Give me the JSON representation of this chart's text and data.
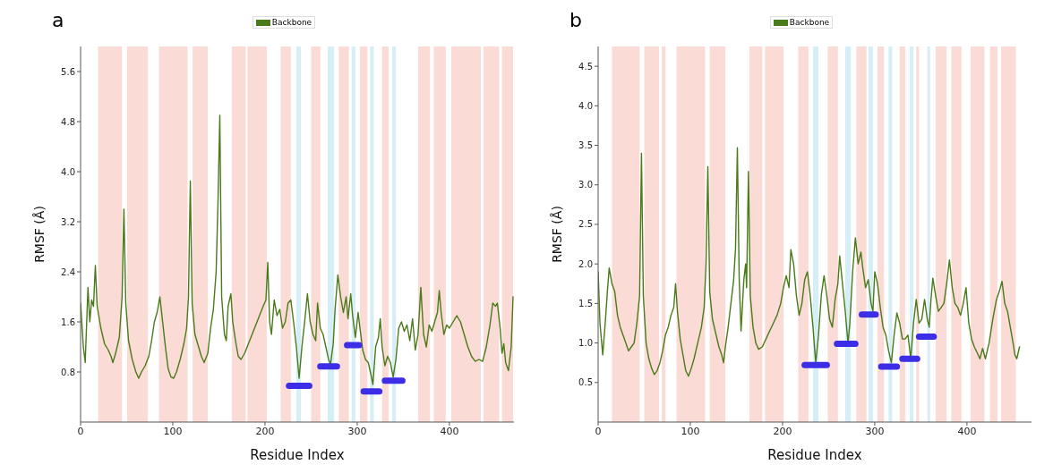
{
  "chart_data": [
    {
      "type": "line",
      "title": "a",
      "xlabel": "Residue Index",
      "ylabel": "RMSF (Å)",
      "legend": "top",
      "xlim": [
        0,
        470
      ],
      "xticks": [
        0,
        100,
        200,
        300,
        400
      ],
      "ylim": [
        0,
        6.0
      ],
      "yticks": [
        0.8,
        1.6,
        2.4,
        3.2,
        {
          "value": 4,
          "label": "4.0"
        },
        4.8,
        5.6
      ],
      "series": [
        {
          "name": "Backbone",
          "color": "#4a7a1a",
          "x": [
            0,
            3,
            5,
            8,
            10,
            12,
            14,
            16,
            18,
            22,
            26,
            30,
            33,
            35,
            38,
            42,
            45,
            47,
            49,
            52,
            56,
            60,
            63,
            66,
            70,
            74,
            77,
            80,
            83,
            86,
            89,
            92,
            95,
            98,
            101,
            104,
            108,
            112,
            115,
            117,
            119,
            121,
            124,
            128,
            131,
            134,
            138,
            141,
            144,
            147,
            149,
            151,
            153,
            156,
            158,
            160,
            163,
            165,
            168,
            171,
            174,
            178,
            182,
            186,
            190,
            194,
            198,
            201,
            203,
            205,
            207,
            210,
            213,
            216,
            219,
            222,
            225,
            228,
            231,
            234,
            237,
            240,
            243,
            246,
            249,
            252,
            255,
            257,
            260,
            263,
            266,
            269,
            271,
            274,
            276,
            279,
            282,
            285,
            288,
            290,
            293,
            295,
            298,
            301,
            303,
            306,
            309,
            312,
            315,
            317,
            320,
            323,
            325,
            327,
            330,
            333,
            336,
            339,
            342,
            345,
            348,
            351,
            354,
            357,
            360,
            363,
            366,
            369,
            372,
            375,
            378,
            381,
            384,
            387,
            389,
            391,
            394,
            397,
            400,
            404,
            408,
            412,
            416,
            420,
            424,
            428,
            432,
            436,
            440,
            444,
            447,
            450,
            452,
            455,
            457,
            459,
            461,
            464,
            467,
            469
          ],
          "values": [
            1.9,
            1.2,
            0.95,
            2.15,
            1.6,
            1.95,
            1.85,
            2.5,
            1.85,
            1.5,
            1.25,
            1.15,
            1.05,
            0.95,
            1.1,
            1.35,
            2.0,
            3.4,
            1.9,
            1.3,
            1.0,
            0.8,
            0.7,
            0.8,
            0.9,
            1.05,
            1.3,
            1.6,
            1.75,
            2.0,
            1.6,
            1.2,
            0.85,
            0.72,
            0.7,
            0.8,
            1.0,
            1.25,
            1.5,
            2.0,
            3.85,
            1.9,
            1.4,
            1.2,
            1.05,
            0.95,
            1.1,
            1.5,
            1.8,
            2.4,
            3.5,
            4.9,
            2.0,
            1.4,
            1.3,
            1.85,
            2.05,
            1.6,
            1.3,
            1.05,
            1.0,
            1.1,
            1.25,
            1.4,
            1.55,
            1.7,
            1.85,
            1.95,
            2.55,
            1.6,
            1.4,
            1.95,
            1.7,
            1.8,
            1.5,
            1.6,
            1.9,
            1.95,
            1.6,
            1.2,
            0.7,
            1.2,
            1.6,
            2.05,
            1.6,
            1.4,
            1.3,
            1.9,
            1.5,
            1.4,
            1.2,
            1.0,
            0.92,
            1.25,
            1.8,
            2.35,
            2.0,
            1.75,
            2.0,
            1.65,
            2.05,
            1.7,
            1.35,
            1.75,
            1.5,
            1.15,
            1.0,
            0.95,
            0.75,
            0.6,
            1.2,
            1.35,
            1.65,
            1.2,
            0.9,
            1.05,
            0.95,
            0.72,
            1.0,
            1.5,
            1.6,
            1.45,
            1.55,
            1.3,
            1.65,
            1.15,
            1.4,
            2.15,
            1.4,
            1.2,
            1.55,
            1.45,
            1.6,
            1.75,
            2.1,
            1.75,
            1.4,
            1.55,
            1.5,
            1.6,
            1.7,
            1.6,
            1.4,
            1.2,
            1.05,
            0.97,
            1.0,
            0.97,
            1.2,
            1.55,
            1.9,
            1.85,
            1.9,
            1.5,
            1.1,
            1.25,
            0.95,
            0.82,
            1.2,
            2.0
          ]
        },
        {
          "color": "#3b2ee6",
          "x": [
            226,
            248
          ],
          "values": [
            0.58,
            0.58
          ]
        },
        {
          "color": "#3b2ee6",
          "x": [
            260,
            278
          ],
          "values": [
            0.89,
            0.89
          ]
        },
        {
          "color": "#3b2ee6",
          "x": [
            289,
            302
          ],
          "values": [
            1.23,
            1.23
          ]
        },
        {
          "color": "#3b2ee6",
          "x": [
            307,
            324
          ],
          "values": [
            0.49,
            0.49
          ]
        },
        {
          "color": "#3b2ee6",
          "x": [
            330,
            349
          ],
          "values": [
            0.66,
            0.66
          ]
        }
      ],
      "bands": [
        {
          "axis": "x",
          "from": 19,
          "to": 45,
          "color": "#fadbd5"
        },
        {
          "axis": "x",
          "from": 50.5,
          "to": 73,
          "color": "#fadbd5"
        },
        {
          "axis": "x",
          "from": 85,
          "to": 116,
          "color": "#fadbd5"
        },
        {
          "axis": "x",
          "from": 121.5,
          "to": 138,
          "color": "#fadbd5"
        },
        {
          "axis": "x",
          "from": 164,
          "to": 179,
          "color": "#fadbd5"
        },
        {
          "axis": "x",
          "from": 181,
          "to": 202,
          "color": "#fadbd5"
        },
        {
          "axis": "x",
          "from": 217,
          "to": 228,
          "color": "#fadbd5"
        },
        {
          "axis": "x",
          "from": 250,
          "to": 260,
          "color": "#fadbd5"
        },
        {
          "axis": "x",
          "from": 280,
          "to": 291,
          "color": "#fadbd5"
        },
        {
          "axis": "x",
          "from": 303,
          "to": 311,
          "color": "#fadbd5"
        },
        {
          "axis": "x",
          "from": 327,
          "to": 334,
          "color": "#fadbd5"
        },
        {
          "axis": "x",
          "from": 366,
          "to": 379,
          "color": "#fadbd5"
        },
        {
          "axis": "x",
          "from": 383,
          "to": 396,
          "color": "#fadbd5"
        },
        {
          "axis": "x",
          "from": 402,
          "to": 434,
          "color": "#fadbd5"
        },
        {
          "axis": "x",
          "from": 437,
          "to": 454,
          "color": "#fadbd5"
        },
        {
          "axis": "x",
          "from": 457,
          "to": 469,
          "color": "#fadbd5"
        },
        {
          "axis": "x",
          "from": 234,
          "to": 239,
          "color": "#d6eef5"
        },
        {
          "axis": "x",
          "from": 268,
          "to": 275,
          "color": "#d6eef5"
        },
        {
          "axis": "x",
          "from": 294,
          "to": 298,
          "color": "#d6eef5"
        },
        {
          "axis": "x",
          "from": 314,
          "to": 318,
          "color": "#d6eef5"
        },
        {
          "axis": "x",
          "from": 338,
          "to": 342,
          "color": "#d6eef5"
        }
      ]
    },
    {
      "type": "line",
      "title": "b",
      "xlabel": "Residue Index",
      "ylabel": "RMSF (Å)",
      "legend": "top",
      "xlim": [
        0,
        470
      ],
      "xticks": [
        0,
        100,
        200,
        300,
        400
      ],
      "ylim": [
        0,
        4.75
      ],
      "yticks": [
        0.5,
        {
          "value": 1,
          "label": "1.0"
        },
        1.5,
        {
          "value": 2,
          "label": "2.0"
        },
        2.5,
        {
          "value": 3,
          "label": "3.0"
        },
        3.5,
        {
          "value": 4,
          "label": "4.0"
        },
        4.5
      ],
      "series": [
        {
          "name": "Backbone",
          "color": "#4a7a1a",
          "x": [
            0,
            2,
            5,
            8,
            10,
            12,
            15,
            18,
            21,
            24,
            27,
            30,
            33,
            36,
            39,
            42,
            45,
            47,
            49,
            52,
            55,
            58,
            61,
            64,
            67,
            70,
            73,
            76,
            79,
            82,
            84,
            86,
            89,
            92,
            95,
            98,
            101,
            104,
            108,
            112,
            115,
            117,
            119,
            121,
            124,
            128,
            131,
            134,
            136,
            138,
            141,
            144,
            147,
            149,
            151,
            153,
            155,
            158,
            160,
            161,
            163,
            165,
            168,
            171,
            174,
            178,
            182,
            186,
            190,
            194,
            198,
            201,
            204,
            207,
            209,
            212,
            215,
            218,
            221,
            224,
            227,
            230,
            233,
            236,
            239,
            242,
            245,
            248,
            251,
            254,
            257,
            260,
            262,
            265,
            268,
            271,
            273,
            276,
            279,
            282,
            285,
            287,
            290,
            293,
            296,
            298,
            300,
            303,
            306,
            309,
            312,
            315,
            318,
            321,
            324,
            327,
            330,
            333,
            336,
            339,
            342,
            345,
            348,
            351,
            354,
            357,
            359,
            361,
            363,
            366,
            369,
            372,
            375,
            378,
            381,
            384,
            387,
            390,
            393,
            396,
            399,
            402,
            405,
            408,
            411,
            414,
            417,
            420,
            424,
            428,
            432,
            435,
            438,
            441,
            444,
            447,
            450,
            452,
            454,
            457
          ],
          "values": [
            1.9,
            1.25,
            0.85,
            1.3,
            1.65,
            1.95,
            1.75,
            1.65,
            1.35,
            1.2,
            1.1,
            1.0,
            0.9,
            0.95,
            1.0,
            1.25,
            1.6,
            3.4,
            1.6,
            1.0,
            0.8,
            0.68,
            0.6,
            0.65,
            0.75,
            0.9,
            1.1,
            1.2,
            1.35,
            1.45,
            1.75,
            1.4,
            1.05,
            0.85,
            0.65,
            0.58,
            0.68,
            0.8,
            1.0,
            1.2,
            1.45,
            2.0,
            3.23,
            1.65,
            1.3,
            1.1,
            0.95,
            0.85,
            0.75,
            0.95,
            1.2,
            1.5,
            1.8,
            2.2,
            3.47,
            1.8,
            1.15,
            1.8,
            2.0,
            1.7,
            3.17,
            1.6,
            1.2,
            1.0,
            0.92,
            0.95,
            1.05,
            1.15,
            1.25,
            1.35,
            1.5,
            1.7,
            1.85,
            1.7,
            2.18,
            2.0,
            1.6,
            1.35,
            1.5,
            1.8,
            1.9,
            1.6,
            1.2,
            0.75,
            1.1,
            1.6,
            1.85,
            1.6,
            1.3,
            1.2,
            1.55,
            1.75,
            2.1,
            1.75,
            1.4,
            1.0,
            1.25,
            1.9,
            2.33,
            2.0,
            2.15,
            1.95,
            1.7,
            1.8,
            1.5,
            1.4,
            1.9,
            1.75,
            1.45,
            1.2,
            1.1,
            0.9,
            0.75,
            1.1,
            1.38,
            1.25,
            1.05,
            1.05,
            1.1,
            0.8,
            1.25,
            1.55,
            1.25,
            1.3,
            1.55,
            1.3,
            1.2,
            1.55,
            1.82,
            1.6,
            1.4,
            1.45,
            1.5,
            1.75,
            2.05,
            1.7,
            1.5,
            1.45,
            1.35,
            1.5,
            1.7,
            1.25,
            1.05,
            0.95,
            0.88,
            0.8,
            0.93,
            0.8,
            1.0,
            1.3,
            1.55,
            1.65,
            1.78,
            1.5,
            1.4,
            1.2,
            1.0,
            0.85,
            0.8,
            0.95
          ]
        },
        {
          "color": "#3b2ee6",
          "x": [
            224,
            248
          ],
          "values": [
            0.72,
            0.72
          ]
        },
        {
          "color": "#3b2ee6",
          "x": [
            259,
            279
          ],
          "values": [
            0.99,
            0.99
          ]
        },
        {
          "color": "#3b2ee6",
          "x": [
            286,
            301
          ],
          "values": [
            1.36,
            1.36
          ]
        },
        {
          "color": "#3b2ee6",
          "x": [
            307,
            324
          ],
          "values": [
            0.7,
            0.7
          ]
        },
        {
          "color": "#3b2ee6",
          "x": [
            330,
            346
          ],
          "values": [
            0.8,
            0.8
          ]
        },
        {
          "color": "#3b2ee6",
          "x": [
            348,
            364
          ],
          "values": [
            1.08,
            1.08
          ]
        }
      ],
      "bands": [
        {
          "axis": "x",
          "from": 15,
          "to": 45,
          "color": "#fadbd5"
        },
        {
          "axis": "x",
          "from": 50,
          "to": 66,
          "color": "#fadbd5"
        },
        {
          "axis": "x",
          "from": 69,
          "to": 73,
          "color": "#fadbd5"
        },
        {
          "axis": "x",
          "from": 85,
          "to": 116,
          "color": "#fadbd5"
        },
        {
          "axis": "x",
          "from": 121,
          "to": 138,
          "color": "#fadbd5"
        },
        {
          "axis": "x",
          "from": 164,
          "to": 178,
          "color": "#fadbd5"
        },
        {
          "axis": "x",
          "from": 181,
          "to": 201,
          "color": "#fadbd5"
        },
        {
          "axis": "x",
          "from": 217,
          "to": 228,
          "color": "#fadbd5"
        },
        {
          "axis": "x",
          "from": 249,
          "to": 260,
          "color": "#fadbd5"
        },
        {
          "axis": "x",
          "from": 280,
          "to": 291,
          "color": "#fadbd5"
        },
        {
          "axis": "x",
          "from": 303,
          "to": 310,
          "color": "#fadbd5"
        },
        {
          "axis": "x",
          "from": 327,
          "to": 333,
          "color": "#fadbd5"
        },
        {
          "axis": "x",
          "from": 345,
          "to": 348,
          "color": "#fadbd5"
        },
        {
          "axis": "x",
          "from": 366,
          "to": 378,
          "color": "#fadbd5"
        },
        {
          "axis": "x",
          "from": 383,
          "to": 394,
          "color": "#fadbd5"
        },
        {
          "axis": "x",
          "from": 404,
          "to": 419,
          "color": "#fadbd5"
        },
        {
          "axis": "x",
          "from": 425,
          "to": 433,
          "color": "#fadbd5"
        },
        {
          "axis": "x",
          "from": 437,
          "to": 453,
          "color": "#fadbd5"
        },
        {
          "axis": "x",
          "from": 233,
          "to": 239,
          "color": "#d6eef5"
        },
        {
          "axis": "x",
          "from": 268,
          "to": 274,
          "color": "#d6eef5"
        },
        {
          "axis": "x",
          "from": 293,
          "to": 298,
          "color": "#d6eef5"
        },
        {
          "axis": "x",
          "from": 315,
          "to": 319,
          "color": "#d6eef5"
        },
        {
          "axis": "x",
          "from": 338,
          "to": 342,
          "color": "#d6eef5"
        },
        {
          "axis": "x",
          "from": 357,
          "to": 360,
          "color": "#d6eef5"
        }
      ]
    }
  ]
}
